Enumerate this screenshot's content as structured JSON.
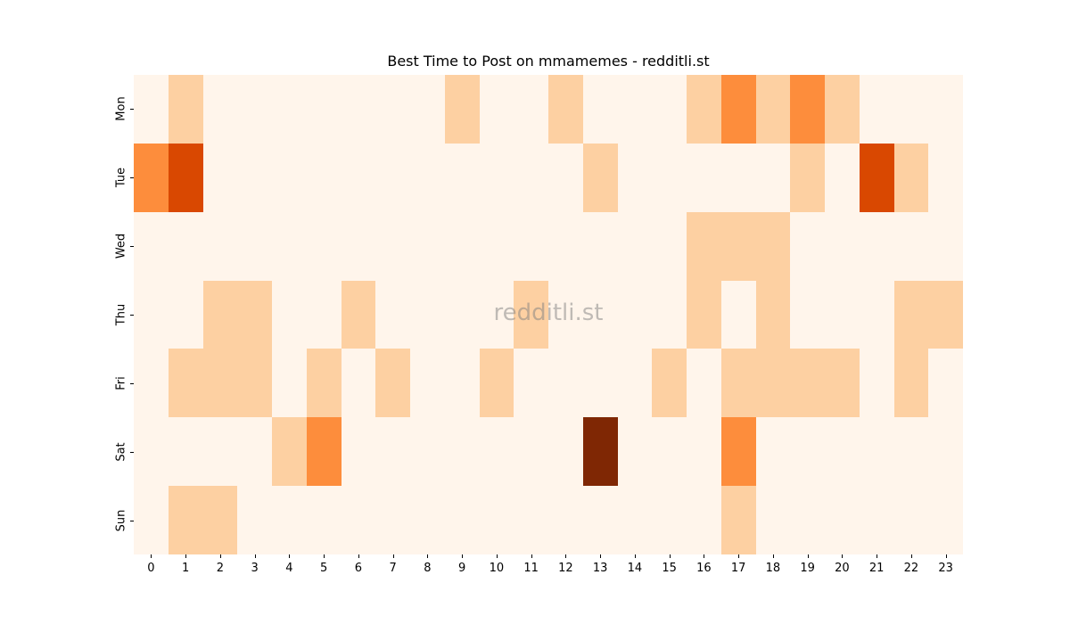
{
  "chart_data": {
    "type": "heatmap",
    "title": "Best Time to Post on mmamemes - redditli.st",
    "xlabel": "",
    "ylabel": "",
    "watermark": "redditli.st",
    "x": [
      "0",
      "1",
      "2",
      "3",
      "4",
      "5",
      "6",
      "7",
      "8",
      "9",
      "10",
      "11",
      "12",
      "13",
      "14",
      "15",
      "16",
      "17",
      "18",
      "19",
      "20",
      "21",
      "22",
      "23"
    ],
    "y": [
      "Mon",
      "Tue",
      "Wed",
      "Thu",
      "Fri",
      "Sat",
      "Sun"
    ],
    "colormap": "Oranges",
    "level_colors": [
      "#fff5eb",
      "#fdd0a2",
      "#fd8d3c",
      "#d94801",
      "#7f2704"
    ],
    "values": [
      [
        0,
        1,
        0,
        0,
        0,
        0,
        0,
        0,
        0,
        1,
        0,
        0,
        1,
        0,
        0,
        0,
        1,
        2,
        1,
        2,
        1,
        0,
        0,
        0
      ],
      [
        2,
        3,
        0,
        0,
        0,
        0,
        0,
        0,
        0,
        0,
        0,
        0,
        0,
        1,
        0,
        0,
        0,
        0,
        0,
        1,
        0,
        3,
        1,
        0
      ],
      [
        0,
        0,
        0,
        0,
        0,
        0,
        0,
        0,
        0,
        0,
        0,
        0,
        0,
        0,
        0,
        0,
        1,
        1,
        1,
        0,
        0,
        0,
        0,
        0
      ],
      [
        0,
        0,
        1,
        1,
        0,
        0,
        1,
        0,
        0,
        0,
        0,
        1,
        0,
        0,
        0,
        0,
        1,
        0,
        1,
        0,
        0,
        0,
        1,
        1
      ],
      [
        0,
        1,
        1,
        1,
        0,
        1,
        0,
        1,
        0,
        0,
        1,
        0,
        0,
        0,
        0,
        1,
        0,
        1,
        1,
        1,
        1,
        0,
        1,
        0
      ],
      [
        0,
        0,
        0,
        0,
        1,
        2,
        0,
        0,
        0,
        0,
        0,
        0,
        0,
        4,
        0,
        0,
        0,
        2,
        0,
        0,
        0,
        0,
        0,
        0
      ],
      [
        0,
        1,
        1,
        0,
        0,
        0,
        0,
        0,
        0,
        0,
        0,
        0,
        0,
        0,
        0,
        0,
        0,
        1,
        0,
        0,
        0,
        0,
        0,
        0
      ]
    ],
    "legend": "none",
    "grid": false
  }
}
